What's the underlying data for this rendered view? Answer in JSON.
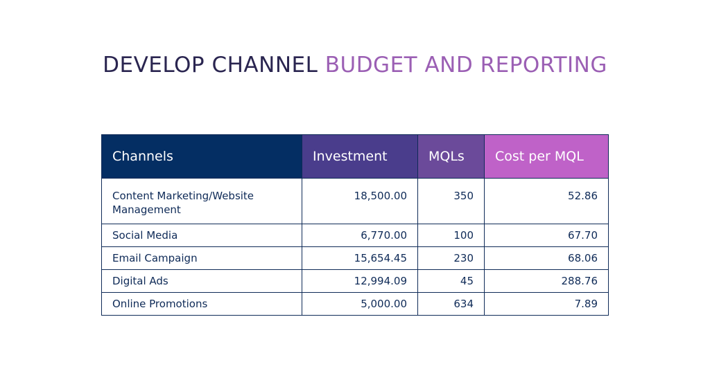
{
  "title": {
    "part1": "DEVELOP CHANNEL ",
    "part2": "BUDGET AND REPORTING"
  },
  "colors": {
    "title_dark": "#2a2550",
    "title_purple": "#9b5fb4",
    "header_channels": "#042e63",
    "header_investment": "#4a3d8c",
    "header_mqls": "#6b4a9a",
    "header_cost": "#bf62c8",
    "text": "#0e2a57"
  },
  "table": {
    "headers": [
      "Channels",
      "Investment",
      "MQLs",
      "Cost per MQL"
    ],
    "rows": [
      {
        "channel": "Content Marketing/Website Management",
        "investment": "18,500.00",
        "mqls": "350",
        "cost": "52.86"
      },
      {
        "channel": "Social Media",
        "investment": "6,770.00",
        "mqls": "100",
        "cost": "67.70"
      },
      {
        "channel": "Email Campaign",
        "investment": "15,654.45",
        "mqls": "230",
        "cost": "68.06"
      },
      {
        "channel": "Digital Ads",
        "investment": "12,994.09",
        "mqls": "45",
        "cost": "288.76"
      },
      {
        "channel": "Online Promotions",
        "investment": "5,000.00",
        "mqls": "634",
        "cost": "7.89"
      }
    ]
  }
}
